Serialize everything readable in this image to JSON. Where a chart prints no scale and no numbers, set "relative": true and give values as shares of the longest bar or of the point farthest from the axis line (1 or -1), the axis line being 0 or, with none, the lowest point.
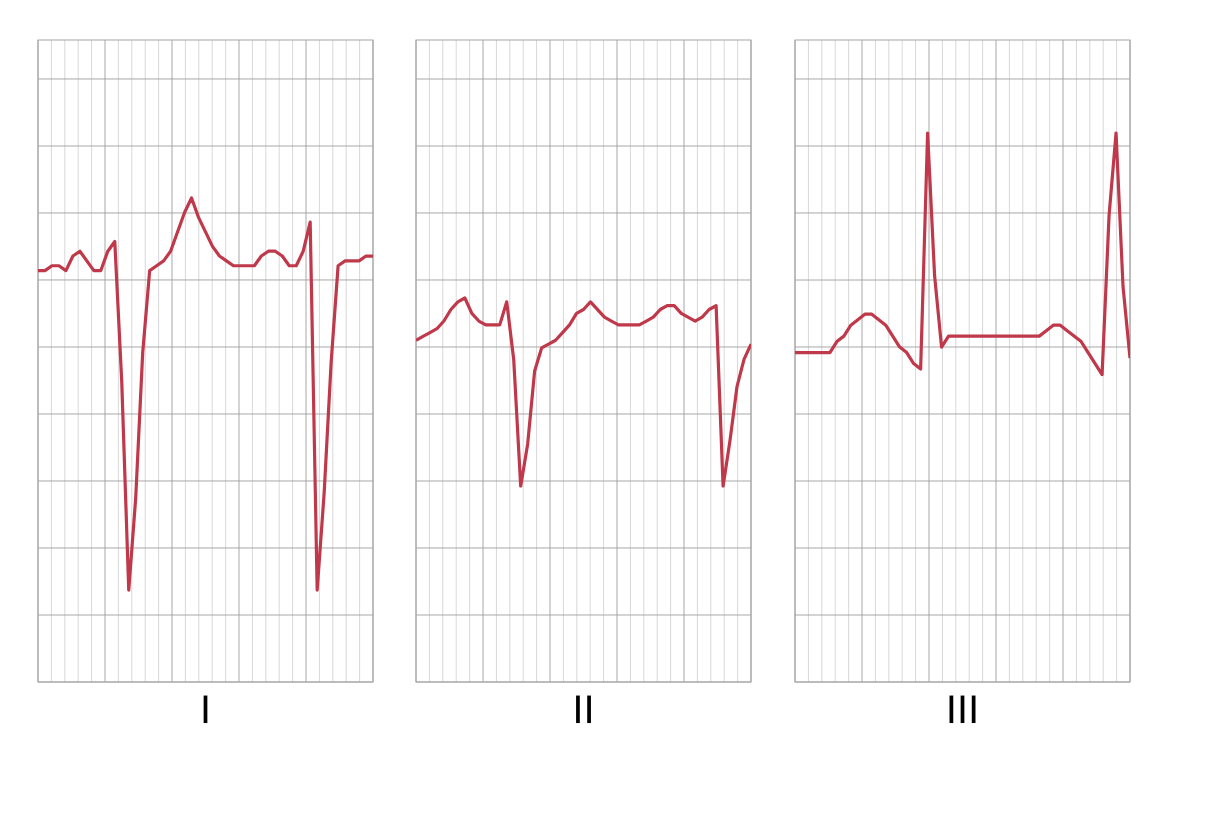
{
  "chart_data": [
    {
      "type": "line",
      "relative": true,
      "grid": true,
      "tick_labels": false,
      "xlabel": "I",
      "color": "#c0394b",
      "categories": [
        null,
        null,
        null,
        null,
        null,
        null,
        null,
        null,
        null,
        null,
        null,
        null,
        null,
        null,
        null,
        null,
        null,
        null,
        null,
        null,
        null,
        null,
        null,
        null,
        null,
        null,
        null,
        null,
        null,
        null,
        null,
        null,
        null,
        null,
        null,
        null,
        null,
        null,
        null,
        null,
        null,
        null,
        null,
        null,
        null,
        null,
        null,
        null,
        null
      ],
      "values": [
        0.85,
        0.85,
        0.86,
        0.86,
        0.85,
        0.88,
        0.89,
        0.87,
        0.85,
        0.85,
        0.89,
        0.91,
        0.62,
        0.19,
        0.38,
        0.68,
        0.85,
        0.86,
        0.87,
        0.89,
        0.93,
        0.97,
        1,
        0.96,
        0.93,
        0.9,
        0.88,
        0.87,
        0.86,
        0.86,
        0.86,
        0.86,
        0.88,
        0.89,
        0.89,
        0.88,
        0.86,
        0.86,
        0.89,
        0.95,
        0.19,
        0.39,
        0.66,
        0.86,
        0.87,
        0.87,
        0.87,
        0.88,
        0.88
      ]
    },
    {
      "type": "line",
      "relative": true,
      "grid": true,
      "tick_labels": false,
      "xlabel": "II",
      "color": "#c0394b",
      "categories": [
        null,
        null,
        null,
        null,
        null,
        null,
        null,
        null,
        null,
        null,
        null,
        null,
        null,
        null,
        null,
        null,
        null,
        null,
        null,
        null,
        null,
        null,
        null,
        null,
        null,
        null,
        null,
        null,
        null,
        null,
        null,
        null,
        null,
        null,
        null,
        null,
        null,
        null,
        null,
        null,
        null,
        null,
        null,
        null,
        null,
        null,
        null,
        null,
        null
      ],
      "values": [
        0.89,
        0.9,
        0.91,
        0.92,
        0.94,
        0.97,
        0.99,
        1,
        0.96,
        0.94,
        0.93,
        0.93,
        0.93,
        0.99,
        0.84,
        0.51,
        0.62,
        0.81,
        0.87,
        0.88,
        0.89,
        0.91,
        0.93,
        0.96,
        0.97,
        0.99,
        0.97,
        0.95,
        0.94,
        0.93,
        0.93,
        0.93,
        0.93,
        0.94,
        0.95,
        0.97,
        0.98,
        0.98,
        0.96,
        0.95,
        0.94,
        0.95,
        0.97,
        0.98,
        0.51,
        0.63,
        0.77,
        0.84,
        0.88
      ]
    },
    {
      "type": "line",
      "relative": true,
      "grid": true,
      "tick_labels": false,
      "xlabel": "III",
      "color": "#c0394b",
      "categories": [
        null,
        null,
        null,
        null,
        null,
        null,
        null,
        null,
        null,
        null,
        null,
        null,
        null,
        null,
        null,
        null,
        null,
        null,
        null,
        null,
        null,
        null,
        null,
        null,
        null,
        null,
        null,
        null,
        null,
        null,
        null,
        null,
        null,
        null,
        null,
        null,
        null,
        null,
        null,
        null,
        null,
        null,
        null,
        null,
        null,
        null,
        null,
        null,
        null
      ],
      "values": [
        0.6,
        0.6,
        0.6,
        0.6,
        0.6,
        0.6,
        0.62,
        0.63,
        0.65,
        0.66,
        0.67,
        0.67,
        0.66,
        0.65,
        0.63,
        0.61,
        0.6,
        0.58,
        0.57,
        1,
        0.74,
        0.61,
        0.63,
        0.63,
        0.63,
        0.63,
        0.63,
        0.63,
        0.63,
        0.63,
        0.63,
        0.63,
        0.63,
        0.63,
        0.63,
        0.63,
        0.64,
        0.65,
        0.65,
        0.64,
        0.63,
        0.62,
        0.6,
        0.58,
        0.56,
        0.85,
        1,
        0.72,
        0.59
      ]
    }
  ]
}
